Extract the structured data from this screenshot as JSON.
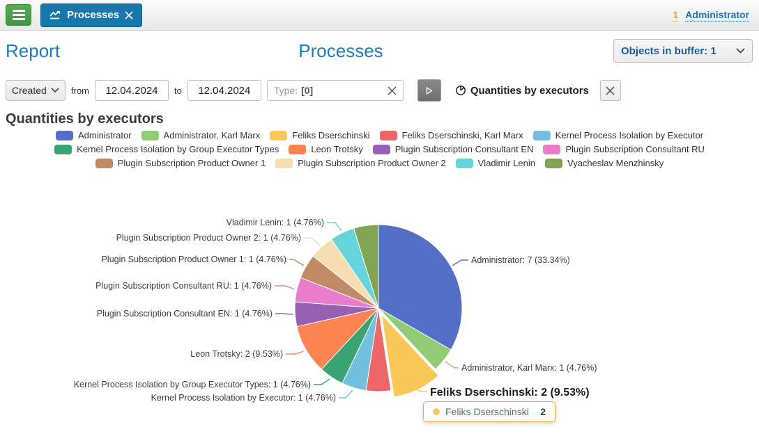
{
  "topbar": {
    "tab": {
      "label": "Processes"
    },
    "user": {
      "count": "1",
      "name": "Administrator"
    }
  },
  "titlebar": {
    "left_title": "Report",
    "center_title": "Processes",
    "buffer_select_value": "Objects in buffer: 1"
  },
  "filters": {
    "created_select_value": "Created",
    "from_label": "from",
    "date_from": "12.04.2024",
    "to_label": "to",
    "date_to": "12.04.2024",
    "type_field": {
      "prefix": "Type:",
      "value": "[0]"
    },
    "report_name": "Quantities by executors"
  },
  "section": {
    "title": "Quantities by executors"
  },
  "chart_data": {
    "type": "pie",
    "title": "Quantities by executors",
    "legend_position": "top",
    "total": 21,
    "selected": "Feliks Dserschinski",
    "series": [
      {
        "name": "Administrator",
        "value": 7,
        "pct": "33.34",
        "color": "#5470c6"
      },
      {
        "name": "Administrator, Karl Marx",
        "value": 1,
        "pct": "4.76",
        "color": "#91cc75"
      },
      {
        "name": "Feliks Dserschinski",
        "value": 2,
        "pct": "9.53",
        "color": "#fac858"
      },
      {
        "name": "Feliks Dserschinski, Karl Marx",
        "value": 1,
        "pct": "4.76",
        "color": "#ee6666"
      },
      {
        "name": "Kernel Process Isolation by Executor",
        "value": 1,
        "pct": "4.76",
        "color": "#73c0de"
      },
      {
        "name": "Kernel Process Isolation by Group Executor Types",
        "value": 1,
        "pct": "4.76",
        "color": "#3ba272"
      },
      {
        "name": "Leon Trotsky",
        "value": 2,
        "pct": "9.53",
        "color": "#fc8452"
      },
      {
        "name": "Plugin Subscription Consultant EN",
        "value": 1,
        "pct": "4.76",
        "color": "#9a60b4"
      },
      {
        "name": "Plugin Subscription Consultant RU",
        "value": 1,
        "pct": "4.76",
        "color": "#ea7ccc"
      },
      {
        "name": "Plugin Subscription Product Owner 1",
        "value": 1,
        "pct": "4.76",
        "color": "#bf8a65"
      },
      {
        "name": "Plugin Subscription Product Owner 2",
        "value": 1,
        "pct": "4.76",
        "color": "#f8dcb2"
      },
      {
        "name": "Vladimir Lenin",
        "value": 1,
        "pct": "4.76",
        "color": "#66d4da"
      },
      {
        "name": "Vyacheslav Menzhinsky",
        "value": 1,
        "pct": "4.76",
        "color": "#81a356"
      }
    ],
    "hidden_labels": [
      "Feliks Dserschinski, Karl Marx",
      "Vyacheslav Menzhinsky"
    ],
    "tooltip": {
      "label": "Feliks Dserschinski",
      "value": "2",
      "border_color": "#f3a73c"
    }
  }
}
